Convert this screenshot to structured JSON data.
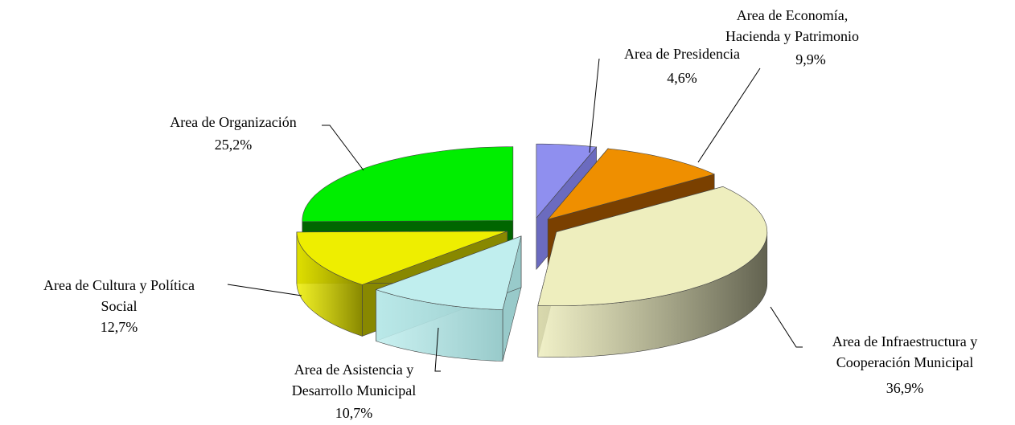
{
  "chart_data": {
    "type": "pie3d",
    "categories": [
      "Area de Presidencia",
      "Area de Economía, Hacienda y Patrimonio",
      "Area de Infraestructura y Cooperación Municipal",
      "Area de Asistencia y Desarrollo Municipal",
      "Area de Cultura y Política Social",
      "Area de Organización"
    ],
    "values": [
      4.6,
      9.9,
      36.9,
      10.7,
      12.7,
      25.2
    ],
    "value_labels": [
      "4,6%",
      "9,9%",
      "36,9%",
      "10,7%",
      "12,7%",
      "25,2%"
    ],
    "colors": [
      "#8f8fef",
      "#ef8f00",
      "#eeeebe",
      "#c0eeee",
      "#eeee00",
      "#00ee00"
    ],
    "side_colors": [
      "#6b6bbf",
      "#7a4000",
      "#626250",
      "#98caca",
      "#888800",
      "#006600"
    ]
  }
}
